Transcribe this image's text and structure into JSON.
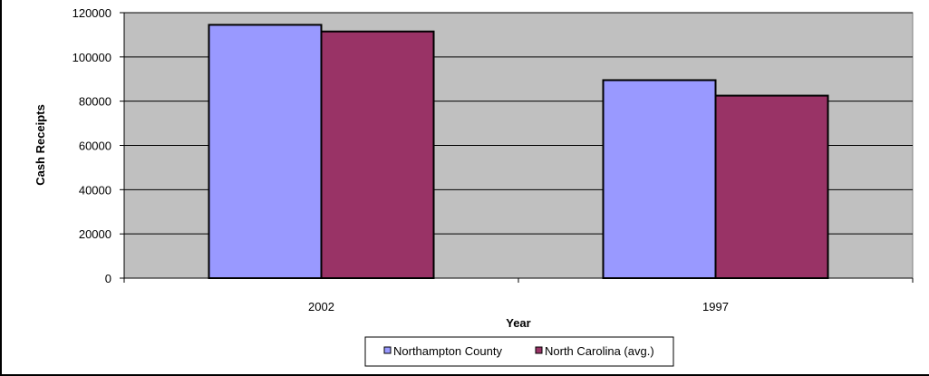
{
  "chart_data": {
    "type": "bar",
    "categories": [
      "2002",
      "1997"
    ],
    "series": [
      {
        "name": "Northampton County",
        "values": [
          114500,
          89500
        ],
        "color": "#9999FF"
      },
      {
        "name": "North Carolina (avg.)",
        "values": [
          111500,
          82500
        ],
        "color": "#993366"
      }
    ],
    "xlabel": "Year",
    "ylabel": "Cash Receipts",
    "ylim": [
      0,
      120000
    ],
    "yticks": [
      0,
      20000,
      40000,
      60000,
      80000,
      100000,
      120000
    ],
    "grid": true,
    "legend_position": "bottom",
    "plot_background": "#C0C0C0"
  }
}
